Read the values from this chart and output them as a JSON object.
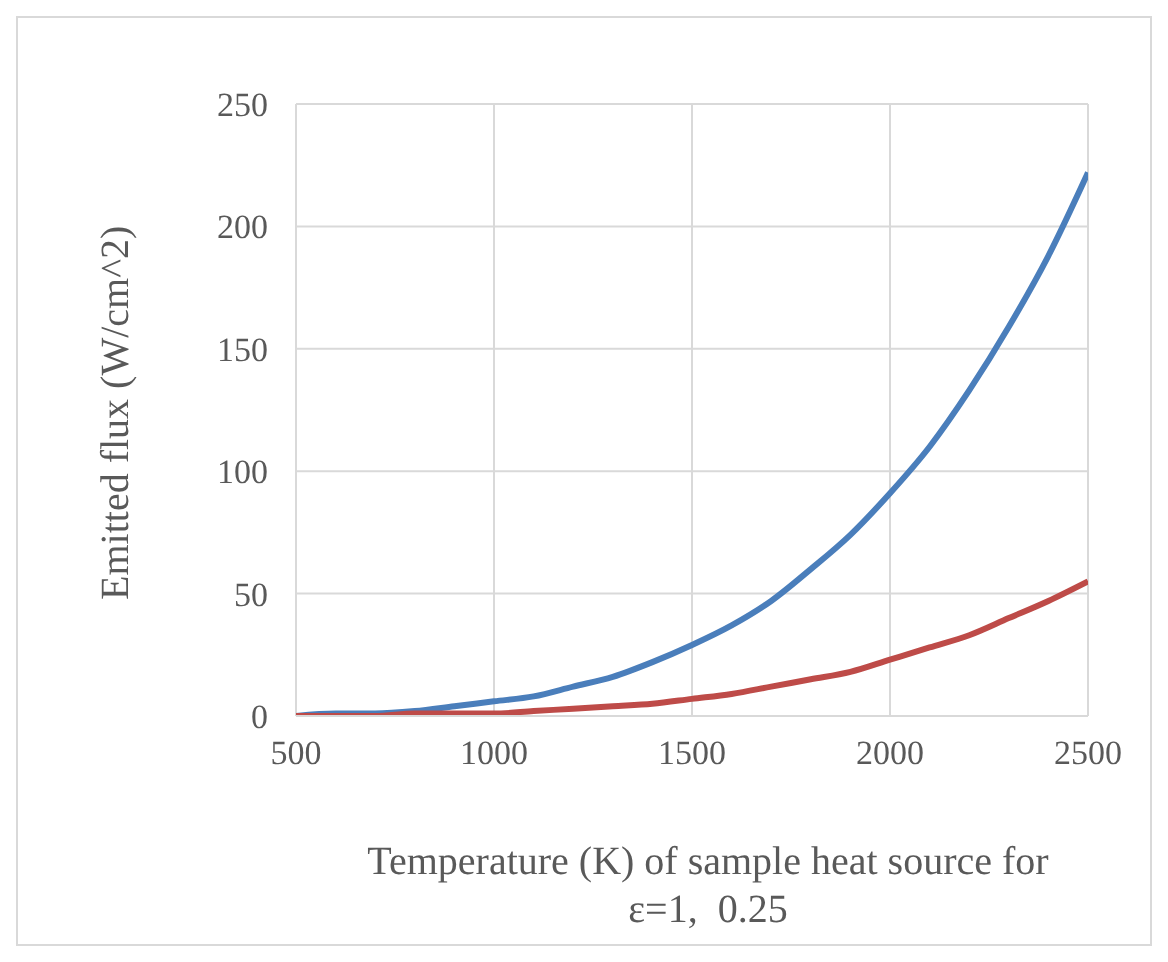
{
  "chart_data": {
    "type": "line",
    "xlabel": "Temperature (K) of sample heat source for  ε=1,  0.25",
    "ylabel": "Emitted flux (W/cm^2)",
    "x": [
      500,
      600,
      700,
      800,
      900,
      1000,
      1100,
      1200,
      1300,
      1400,
      1500,
      1600,
      1700,
      1800,
      1900,
      2000,
      2100,
      2200,
      2300,
      2400,
      2500
    ],
    "series": [
      {
        "color": "#4a7ebb",
        "values": [
          0,
          1,
          1,
          2,
          4,
          6,
          8,
          12,
          16,
          22,
          29,
          37,
          47,
          60,
          74,
          91,
          110,
          133,
          159,
          188,
          222
        ]
      },
      {
        "color": "#be4b48",
        "values": [
          0,
          0,
          0,
          1,
          1,
          1,
          2,
          3,
          4,
          5,
          7,
          9,
          12,
          15,
          18,
          23,
          28,
          33,
          40,
          47,
          55
        ]
      }
    ],
    "xlim": [
      500,
      2500
    ],
    "xticks": [
      500,
      1000,
      1500,
      2000,
      2500
    ],
    "ylim": [
      0,
      250
    ],
    "yticks": [
      0,
      50,
      100,
      150,
      200,
      250
    ],
    "grid": true,
    "legend": false,
    "marker": "none",
    "line_style": "solid"
  }
}
